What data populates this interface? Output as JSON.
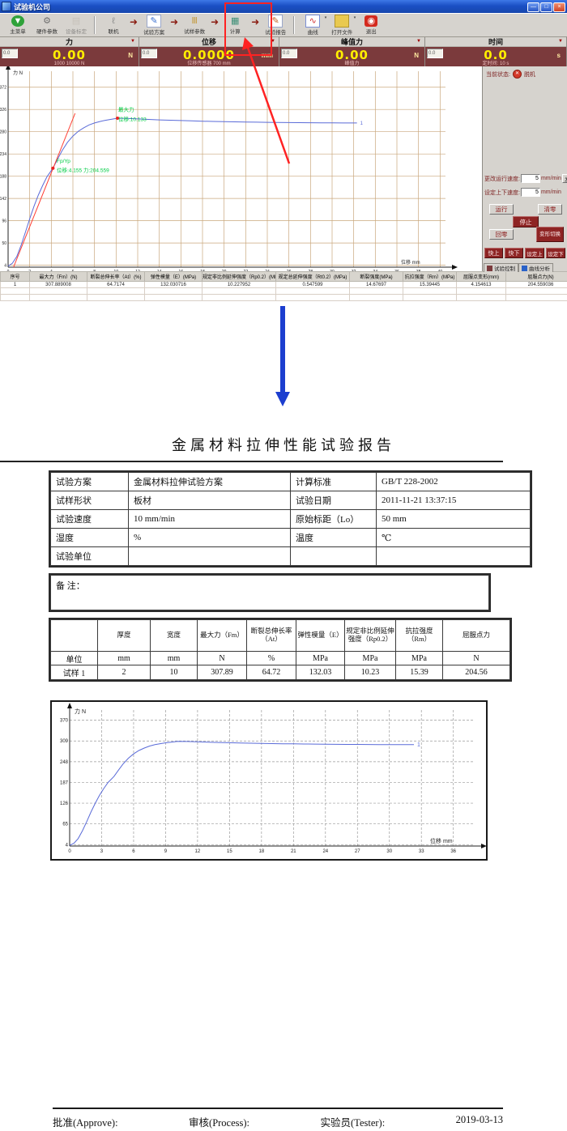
{
  "window": {
    "title": "试验机公司",
    "controls": [
      {
        "name": "minimize-button",
        "glyph": "—"
      },
      {
        "name": "maximize-button",
        "glyph": "□"
      },
      {
        "name": "close-button",
        "glyph": "×"
      }
    ]
  },
  "toolbar": {
    "buttons": [
      {
        "label": "主菜单",
        "icon": "menu-icon"
      },
      {
        "label": "硬件参数",
        "icon": "hardware-params-icon"
      },
      {
        "label": "设备标定",
        "icon": "device-calibration-icon",
        "disabled": true
      },
      {
        "label": "联机",
        "icon": "connect-icon",
        "sep_before": true
      },
      {
        "label": "试验方案",
        "icon": "test-plan-icon",
        "arrow_before": true
      },
      {
        "label": "试样参数",
        "icon": "specimen-params-icon",
        "arrow_before": true
      },
      {
        "label": "计算",
        "icon": "calculate-icon",
        "arrow_before": true
      },
      {
        "label": "试验报告",
        "icon": "test-report-icon",
        "arrow_before": true,
        "highlighted": true
      },
      {
        "label": "曲线",
        "icon": "curve-icon",
        "sep_before": true,
        "dropdown": true
      },
      {
        "label": "打开文件",
        "icon": "open-file-icon",
        "dropdown": true
      },
      {
        "label": "退出",
        "icon": "exit-icon"
      }
    ]
  },
  "meters": [
    {
      "title": "力",
      "aux": "0.0",
      "value": "0.00",
      "unit": "N",
      "sub": "1000 10000 N"
    },
    {
      "title": "位移",
      "aux": "0.0",
      "value": "0.0000",
      "unit": "mm",
      "sub": "位移传感器 700 mm"
    },
    {
      "title": "峰值力",
      "aux": "0.0",
      "value": "0.00",
      "unit": "N",
      "sub": "峰值力"
    },
    {
      "title": "时间",
      "aux": "0.0",
      "value": "0.0",
      "unit": "s",
      "sub": "定时间: 10 s"
    }
  ],
  "sidebar": {
    "status_label": "当前状态:",
    "status_value": "脱机",
    "speed1_label": "更改运行速度:",
    "speed1_value": "5",
    "speed1_unit": "mm/min",
    "send_label": "发送",
    "speed2_label": "设定上下速度:",
    "speed2_value": "5",
    "speed2_unit": "mm/min",
    "buttons": {
      "run": "运行",
      "clear": "清零",
      "stop": "停止",
      "zero": "回零",
      "deform": "变形切换",
      "fast_up": "快上",
      "fast_down": "快下",
      "set_up": "设定上",
      "set_down": "设定下"
    },
    "tabs": [
      "试验控制",
      "曲线分析"
    ]
  },
  "results_table": {
    "headers": [
      "序号",
      "最大力（Fm）(N)",
      "断裂总伸长率（At）(%)",
      "弹性模量（E）(MPa)",
      "规定非比例延伸强度（Rp0.2）(MPa)",
      "规定总延伸强度（Rt0.2）(MPa)",
      "断裂强度(MPa)",
      "抗拉强度（Rm）(MPa)",
      "屈服点变形(mm)",
      "屈服点力(N)"
    ],
    "rows": [
      [
        "1",
        "307.889008",
        "64.7174",
        "132.030716",
        "10.227952",
        "0.547599",
        "14.67697",
        "15.39445",
        "4.154613",
        "204.559036"
      ]
    ],
    "empty_rows": 3
  },
  "report": {
    "title": "金属材料拉伸性能试验报告",
    "info_rows": [
      [
        "试验方案",
        "金属材料拉伸试验方案",
        "计算标准",
        "GB/T 228-2002"
      ],
      [
        "试样形状",
        "板材",
        "试验日期",
        "2011-11-21 13:37:15"
      ],
      [
        "试验速度",
        "10 mm/min",
        "原始标距（Lo）",
        "50 mm"
      ],
      [
        "湿度",
        "%",
        "温度",
        "℃"
      ],
      [
        "试验单位",
        "",
        "",
        ""
      ]
    ],
    "remark_label": "备 注：",
    "spec_table": {
      "headers": [
        "",
        "厚度",
        "宽度",
        "最大力（Fm）",
        "断裂总伸长率（At）",
        "弹性模量（E）",
        "规定非比例延伸强度（Rp0.2）",
        "抗拉强度（Rm）",
        "屈服点力"
      ],
      "units": [
        "单位",
        "mm",
        "mm",
        "N",
        "%",
        "MPa",
        "MPa",
        "MPa",
        "N"
      ],
      "rows": [
        [
          "试样 1",
          "2",
          "10",
          "307.89",
          "64.72",
          "132.03",
          "10.23",
          "15.39",
          "204.56"
        ]
      ]
    },
    "footer": {
      "approve": "批准(Approve):",
      "process": "审核(Process):",
      "tester": "实验员(Tester):",
      "date": "2019-03-13"
    }
  },
  "colors": {
    "panel_maroon": "#7b3a3c",
    "value_yellow": "#ffee00",
    "annotation_green": "#00cc44",
    "curve_blue": "#5a6bd8",
    "tangent_red": "#ff3b30",
    "overlay_red": "#ff2222",
    "down_arrow_blue": "#1c3ecf",
    "grid_tan": "#c9a77c"
  },
  "curve": [
    [
      0,
      2
    ],
    [
      0.4,
      8
    ],
    [
      0.8,
      22
    ],
    [
      1.2,
      45
    ],
    [
      1.6,
      72
    ],
    [
      2,
      100
    ],
    [
      2.4,
      126
    ],
    [
      2.8,
      149
    ],
    [
      3.2,
      169
    ],
    [
      3.6,
      187
    ],
    [
      4.155,
      204.6
    ],
    [
      4.6,
      224
    ],
    [
      5,
      241
    ],
    [
      5.5,
      258
    ],
    [
      6,
      271
    ],
    [
      6.5,
      281
    ],
    [
      7,
      288
    ],
    [
      7.5,
      294
    ],
    [
      8,
      298
    ],
    [
      8.5,
      301
    ],
    [
      9,
      303.5
    ],
    [
      9.6,
      305.8
    ],
    [
      10.133,
      307.9
    ],
    [
      11,
      307.4
    ],
    [
      12,
      306.4
    ],
    [
      13,
      305.4
    ],
    [
      14,
      304.5
    ],
    [
      15,
      303.7
    ],
    [
      16,
      303
    ],
    [
      17,
      302.4
    ],
    [
      18,
      301.8
    ],
    [
      19,
      301.3
    ],
    [
      20,
      300.8
    ],
    [
      21,
      300.4
    ],
    [
      22,
      300
    ],
    [
      23,
      299.7
    ],
    [
      24,
      299.4
    ],
    [
      25,
      299.1
    ],
    [
      26,
      298.9
    ],
    [
      27,
      298.7
    ],
    [
      28,
      298.5
    ],
    [
      29,
      298.3
    ],
    [
      30,
      298.2
    ],
    [
      31,
      298.1
    ],
    [
      32.3,
      298
    ]
  ],
  "chart_data": [
    {
      "type": "line",
      "id": "main",
      "title": "",
      "ylabel": "力 N",
      "xlabel": "位移 mm",
      "xlim": [
        0,
        40.5
      ],
      "ylim": [
        0,
        405
      ],
      "x_ticks": [
        0,
        2,
        4,
        6,
        8,
        10,
        12,
        14,
        16,
        18,
        20,
        22,
        24,
        26,
        28,
        30,
        32,
        34,
        36,
        38,
        40
      ],
      "y_ticks": [
        4,
        50,
        96,
        142,
        188,
        234,
        280,
        326,
        372
      ],
      "grid": "solid",
      "legend": "none",
      "series": [
        {
          "name": "force-displacement-curve",
          "color": "#5a6bd8",
          "points_key": "curve"
        },
        {
          "name": "elastic-tangent-line",
          "color": "#ff3b30",
          "points": [
            [
              0.5,
              0
            ],
            [
              6.2,
              318
            ]
          ]
        }
      ],
      "markers": [
        {
          "x": 4.155,
          "y": 204.56
        },
        {
          "x": 10.133,
          "y": 307.89
        }
      ],
      "annotations": [
        {
          "text": "最大力",
          "x": 10.2,
          "y": 322
        },
        {
          "text": "位移:10.133",
          "x": 10.2,
          "y": 302
        },
        {
          "text": "Fp/Yp",
          "x": 4.5,
          "y": 216
        },
        {
          "text": "位移:4.155 力:204.559",
          "x": 4.5,
          "y": 197
        }
      ],
      "end_label": "1"
    },
    {
      "type": "line",
      "id": "report",
      "title": "",
      "ylabel": "力 N",
      "xlabel": "位移 mm",
      "xlim": [
        0,
        38
      ],
      "ylim": [
        0,
        400
      ],
      "x_ticks": [
        0,
        3,
        6,
        9,
        12,
        15,
        18,
        21,
        24,
        27,
        30,
        33,
        36
      ],
      "y_ticks": [
        4,
        65,
        126,
        187,
        248,
        309,
        370
      ],
      "grid": "dashed",
      "legend": "none",
      "series": [
        {
          "name": "force-displacement-curve",
          "color": "#5a6bd8",
          "points_key": "curve"
        }
      ],
      "markers": [],
      "annotations": [],
      "end_label": "1"
    }
  ]
}
